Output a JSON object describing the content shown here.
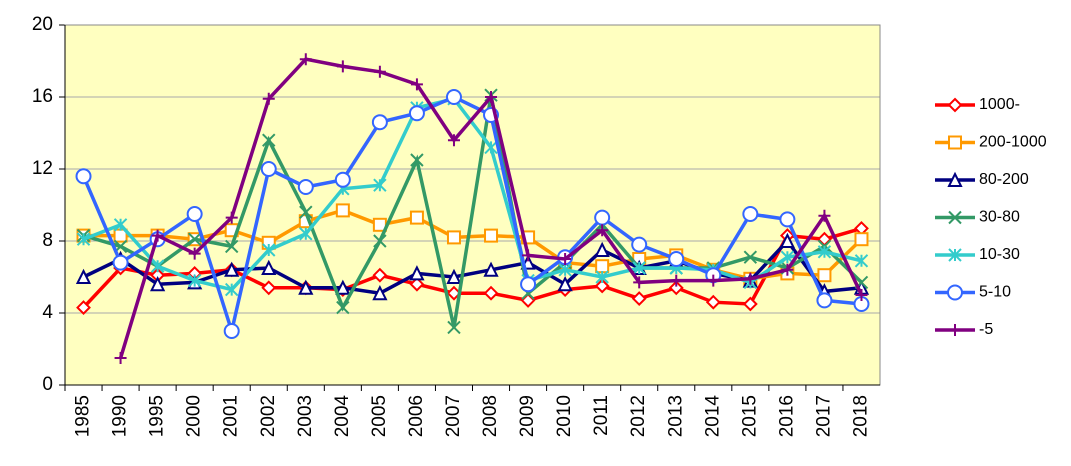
{
  "chart_data": {
    "type": "line",
    "categories": [
      "1985",
      "1990",
      "1995",
      "2000",
      "2001",
      "2002",
      "2003",
      "2004",
      "2005",
      "2006",
      "2007",
      "2008",
      "2009",
      "2010",
      "2011",
      "2012",
      "2013",
      "2014",
      "2015",
      "2016",
      "2017",
      "2018"
    ],
    "ylim": [
      0,
      20
    ],
    "yticks": [
      0,
      4,
      8,
      12,
      16,
      20
    ],
    "grid": true,
    "legend": "right",
    "series": [
      {
        "name": "1000-",
        "color": "#ff0000",
        "marker": "diamond",
        "values": [
          4.3,
          6.5,
          6.1,
          6.2,
          6.4,
          5.4,
          5.4,
          5.3,
          6.1,
          5.6,
          5.1,
          5.1,
          4.7,
          5.3,
          5.5,
          4.8,
          5.4,
          4.6,
          4.5,
          8.3,
          8.1,
          8.7
        ]
      },
      {
        "name": "200-1000",
        "color": "#ff9900",
        "marker": "square",
        "values": [
          8.3,
          8.3,
          8.3,
          8.1,
          8.6,
          7.9,
          9.1,
          9.7,
          8.9,
          9.3,
          8.2,
          8.3,
          8.2,
          6.8,
          6.6,
          7.0,
          7.2,
          6.4,
          5.9,
          6.2,
          6.1,
          8.1
        ]
      },
      {
        "name": "80-200",
        "color": "#000080",
        "marker": "triangle",
        "values": [
          6.0,
          7.0,
          5.6,
          5.7,
          6.4,
          6.5,
          5.4,
          5.4,
          5.1,
          6.2,
          6.0,
          6.4,
          6.8,
          5.6,
          7.5,
          6.5,
          6.9,
          6.2,
          5.8,
          8.0,
          5.2,
          5.4
        ]
      },
      {
        "name": "30-80",
        "color": "#339966",
        "marker": "x",
        "values": [
          8.3,
          7.7,
          6.6,
          8.1,
          7.7,
          13.6,
          9.6,
          4.3,
          8.0,
          12.5,
          3.2,
          16.1,
          5.1,
          6.8,
          8.9,
          6.5,
          6.5,
          6.5,
          7.1,
          6.5,
          7.7,
          5.7
        ]
      },
      {
        "name": "10-30",
        "color": "#33cccc",
        "marker": "star",
        "values": [
          8.1,
          8.9,
          6.6,
          5.8,
          5.3,
          7.5,
          8.4,
          10.9,
          11.1,
          15.4,
          15.9,
          13.2,
          5.8,
          6.4,
          6.0,
          6.5,
          6.5,
          6.4,
          5.7,
          7.1,
          7.4,
          6.9
        ]
      },
      {
        "name": "5-10",
        "color": "#3366ff",
        "marker": "circle",
        "values": [
          11.6,
          6.8,
          8.1,
          9.5,
          3.0,
          12.0,
          11.0,
          11.4,
          14.6,
          15.1,
          16.0,
          15.0,
          5.6,
          7.1,
          9.3,
          7.8,
          7.0,
          6.1,
          9.5,
          9.2,
          4.7,
          4.5
        ]
      },
      {
        "name": "-5",
        "color": "#800080",
        "marker": "plus",
        "values": [
          null,
          1.5,
          8.3,
          7.3,
          9.3,
          15.9,
          18.1,
          17.7,
          17.4,
          16.7,
          13.6,
          16.0,
          7.2,
          7.0,
          8.6,
          5.7,
          5.8,
          5.8,
          5.9,
          6.4,
          9.4,
          5.0
        ]
      }
    ]
  }
}
